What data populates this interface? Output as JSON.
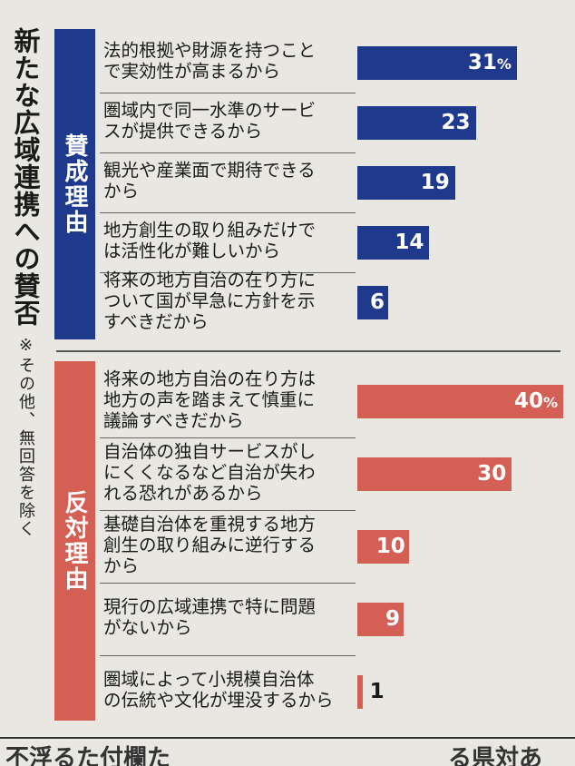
{
  "chart_data": {
    "type": "bar",
    "title": "新たな広域連携への賛否",
    "note": "※その他、無回答を除く",
    "unit": "%",
    "xlim": [
      0,
      40
    ],
    "groups": [
      {
        "name": "賛成理由",
        "color": "#1f3a8c",
        "categories": [
          [
            "法的根拠や財源を持つこと",
            "で実効性が高まるから"
          ],
          [
            "圏域内で同一水準のサービ",
            "スが提供できるから"
          ],
          [
            "観光や産業面で期待できる",
            "から"
          ],
          [
            "地方創生の取り組みだけで",
            "は活性化が難しいから"
          ],
          [
            "将来の地方自治の在り方に",
            "ついて国が早急に方針を示",
            "すべきだから"
          ]
        ],
        "values": [
          31,
          23,
          19,
          14,
          6
        ],
        "labels": [
          "31",
          "23",
          "19",
          "14",
          "6"
        ]
      },
      {
        "name": "反対理由",
        "color": "#d35f55",
        "categories": [
          [
            "将来の地方自治の在り方は",
            "地方の声を踏まえて慎重に",
            "議論すべきだから"
          ],
          [
            "自治体の独自サービスがし",
            "にくくなるなど自治が失わ",
            "れる恐れがあるから"
          ],
          [
            "基礎自治体を重視する地方",
            "創生の取り組みに逆行する",
            "から"
          ],
          [
            "現行の広域連携で特に問題",
            "がないから"
          ],
          [
            "圏域によって小規模自治体",
            "の伝統や文化が埋没するから"
          ]
        ],
        "values": [
          40,
          30,
          10,
          9,
          1
        ],
        "labels": [
          "40",
          "30",
          "10",
          "9",
          "1"
        ]
      }
    ]
  },
  "footer": {
    "left": "不浮るた付欄た",
    "right": "る県対あ"
  }
}
